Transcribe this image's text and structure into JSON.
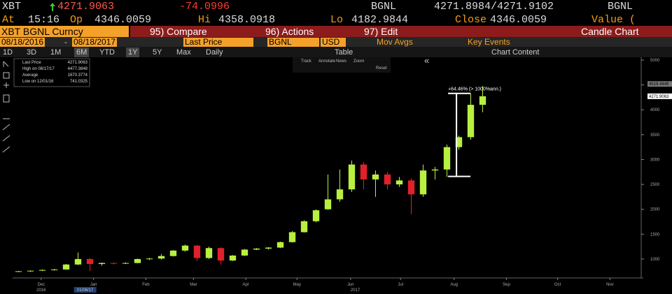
{
  "quote": {
    "ticker": "XBT",
    "last": "4271.9063",
    "change": "-74.0996",
    "source": "BGNL",
    "bid_ask": "4271.8984/4271.9102",
    "source2": "BGNL"
  },
  "stats": [
    {
      "label": "At",
      "value": "15:16"
    },
    {
      "label": "Op",
      "value": "4346.0059"
    },
    {
      "label": "Hi",
      "value": "4358.0918"
    },
    {
      "label": "Lo",
      "value": "4182.9844"
    },
    {
      "label": "Close",
      "value": "4346.0059"
    },
    {
      "label": "Value ("
    }
  ],
  "menu": {
    "security": "XBT BGNL Curncy",
    "items": [
      "95) Compare",
      "96) Actions",
      "97) Edit"
    ],
    "chart_type": "Candle Chart"
  },
  "toolbar": {
    "start": "08/18/2016",
    "end": "08/18/2017",
    "field": "Last Price",
    "source": "BGNL",
    "currency": "USD",
    "studies": "Mov Avgs",
    "events": "Key Events"
  },
  "periods": [
    "1D",
    "3D",
    "1M",
    "6M",
    "YTD",
    "1Y",
    "5Y",
    "Max"
  ],
  "frequency": "Daily",
  "table": "Table",
  "content": "Chart Content",
  "draw_tools": [
    "Track",
    "Annotate",
    "News",
    "Zoom",
    "Reset"
  ],
  "legend": [
    {
      "label": "Last Price",
      "value": "4271.9063"
    },
    {
      "label": "High on 08/17/17",
      "value": "4477.3848"
    },
    {
      "label": "Average",
      "value": "1670.3774"
    },
    {
      "label": "Low on 12/01/16",
      "value": "741.0325"
    }
  ],
  "chart_data": {
    "type": "candlestick",
    "categories": [
      null,
      null,
      null,
      null,
      null,
      null,
      null,
      null,
      null,
      null,
      null,
      null,
      null,
      null,
      null,
      null,
      null,
      null,
      null,
      null,
      null,
      null,
      null,
      null,
      null,
      null,
      null,
      null,
      null,
      null,
      null,
      null,
      null,
      null,
      null,
      null,
      null,
      null,
      null,
      null
    ],
    "open": [
      750,
      755,
      765,
      780,
      790,
      890,
      1000,
      900,
      920,
      910,
      920,
      1000,
      1010,
      1060,
      1170,
      1270,
      1020,
      1220,
      970,
      1070,
      1190,
      1210,
      1230,
      1340,
      1540,
      1760,
      2000,
      2200,
      2400,
      2900,
      2600,
      2700,
      2500,
      2580,
      2300,
      2780,
      2800,
      3250,
      3450,
      4100
    ],
    "high": [
      760,
      770,
      790,
      800,
      900,
      1130,
      1020,
      930,
      930,
      930,
      1010,
      1020,
      1100,
      1180,
      1290,
      1280,
      1250,
      1240,
      1080,
      1200,
      1220,
      1240,
      1350,
      1560,
      1780,
      2000,
      2700,
      2800,
      2980,
      2950,
      2780,
      2750,
      2650,
      2620,
      2900,
      2850,
      3300,
      3480,
      4330,
      4477
    ],
    "low": [
      741,
      741,
      760,
      770,
      785,
      880,
      760,
      870,
      890,
      900,
      915,
      980,
      990,
      1050,
      1150,
      960,
      1000,
      890,
      960,
      1060,
      1180,
      1190,
      1220,
      1330,
      1530,
      1740,
      1990,
      2150,
      2350,
      2400,
      2250,
      2400,
      2450,
      1900,
      2250,
      2600,
      2650,
      3200,
      3400,
      3950
    ],
    "close": [
      755,
      765,
      780,
      790,
      890,
      1000,
      900,
      920,
      910,
      920,
      1000,
      1010,
      1060,
      1170,
      1270,
      1020,
      1220,
      970,
      1070,
      1190,
      1210,
      1230,
      1340,
      1540,
      1760,
      1980,
      2200,
      2400,
      2900,
      2600,
      2700,
      2500,
      2580,
      2300,
      2780,
      2800,
      3250,
      3450,
      4100,
      4271.9063
    ],
    "up_color": "#b8f040",
    "down_color": "#e0202a",
    "xlim": [
      -0.5,
      52.5
    ],
    "xticks": [
      {
        "value": 1.9,
        "label": "Dec"
      },
      {
        "value": 6.3,
        "label": "Jan"
      },
      {
        "value": 10.7,
        "label": "Feb"
      },
      {
        "value": 14.7,
        "label": "Mar"
      },
      {
        "value": 19.1,
        "label": "Apr"
      },
      {
        "value": 23.4,
        "label": "May"
      },
      {
        "value": 27.9,
        "label": "Jun"
      },
      {
        "value": 32.1,
        "label": "Jul"
      },
      {
        "value": 36.6,
        "label": "Aug"
      },
      {
        "value": 41,
        "label": "Sep"
      },
      {
        "value": 45.3,
        "label": "Oct"
      },
      {
        "value": 49.7,
        "label": "Nov"
      }
    ],
    "year_labels": [
      {
        "value": 1.9,
        "label": "2016"
      },
      {
        "value": 28.3,
        "label": "2017"
      }
    ],
    "cursor": {
      "value": 5.6,
      "label": "01/06/17"
    },
    "ylim": [
      620,
      5070
    ],
    "yticks": [
      1000,
      1500,
      2000,
      2500,
      3000,
      3500,
      4000,
      4500,
      5000
    ],
    "annotation": {
      "text": "+64.46% (> 1000%ann.)",
      "low": 2660,
      "high": 4330,
      "at": 36.8
    },
    "price_tags": [
      {
        "value": 4519.4449,
        "color": "#777777"
      },
      {
        "value": 4271.9063,
        "color": "#ffffff"
      }
    ]
  }
}
